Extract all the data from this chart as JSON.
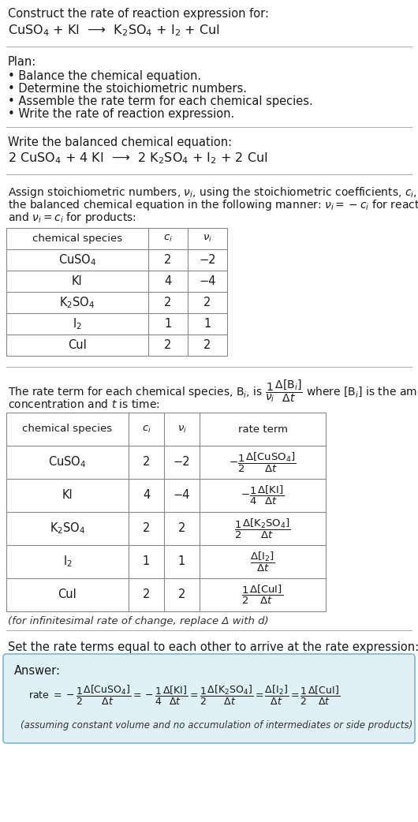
{
  "bg_color": "#ffffff",
  "title_line1": "Construct the rate of reaction expression for:",
  "reaction_unbalanced": "CuSO$_4$ + KI  ⟶  K$_2$SO$_4$ + I$_2$ + CuI",
  "plan_header": "Plan:",
  "plan_items": [
    "• Balance the chemical equation.",
    "• Determine the stoichiometric numbers.",
    "• Assemble the rate term for each chemical species.",
    "• Write the rate of reaction expression."
  ],
  "balanced_header": "Write the balanced chemical equation:",
  "reaction_balanced": "2 CuSO$_4$ + 4 KI  ⟶  2 K$_2$SO$_4$ + I$_2$ + 2 CuI",
  "stoich_intro_lines": [
    "Assign stoichiometric numbers, $\\nu_i$, using the stoichiometric coefficients, $c_i$, from",
    "the balanced chemical equation in the following manner: $\\nu_i = -c_i$ for reactants",
    "and $\\nu_i = c_i$ for products:"
  ],
  "table1_headers": [
    "chemical species",
    "$c_i$",
    "$\\nu_i$"
  ],
  "table1_rows": [
    [
      "CuSO$_4$",
      "2",
      "−2"
    ],
    [
      "KI",
      "4",
      "−4"
    ],
    [
      "K$_2$SO$_4$",
      "2",
      "2"
    ],
    [
      "I$_2$",
      "1",
      "1"
    ],
    [
      "CuI",
      "2",
      "2"
    ]
  ],
  "rate_term_intro1": "The rate term for each chemical species, B$_i$, is $\\dfrac{1}{\\nu_i}\\dfrac{\\Delta[\\mathrm{B}_i]}{\\Delta t}$ where [B$_i$] is the amount",
  "rate_term_intro2": "concentration and $t$ is time:",
  "table2_headers": [
    "chemical species",
    "$c_i$",
    "$\\nu_i$",
    "rate term"
  ],
  "table2_rows": [
    [
      "CuSO$_4$",
      "2",
      "−2",
      "$-\\dfrac{1}{2}\\dfrac{\\Delta[\\mathrm{CuSO_4}]}{\\Delta t}$"
    ],
    [
      "KI",
      "4",
      "−4",
      "$-\\dfrac{1}{4}\\dfrac{\\Delta[\\mathrm{KI}]}{\\Delta t}$"
    ],
    [
      "K$_2$SO$_4$",
      "2",
      "2",
      "$\\dfrac{1}{2}\\dfrac{\\Delta[\\mathrm{K_2SO_4}]}{\\Delta t}$"
    ],
    [
      "I$_2$",
      "1",
      "1",
      "$\\dfrac{\\Delta[\\mathrm{I_2}]}{\\Delta t}$"
    ],
    [
      "CuI",
      "2",
      "2",
      "$\\dfrac{1}{2}\\dfrac{\\Delta[\\mathrm{CuI}]}{\\Delta t}$"
    ]
  ],
  "infinitesimal_note": "(for infinitesimal rate of change, replace Δ with d)",
  "set_equal_text": "Set the rate terms equal to each other to arrive at the rate expression:",
  "answer_box_color": "#dff0f7",
  "answer_border_color": "#7ab8cc",
  "answer_label": "Answer:",
  "answer_note": "(assuming constant volume and no accumulation of intermediates or side products)"
}
